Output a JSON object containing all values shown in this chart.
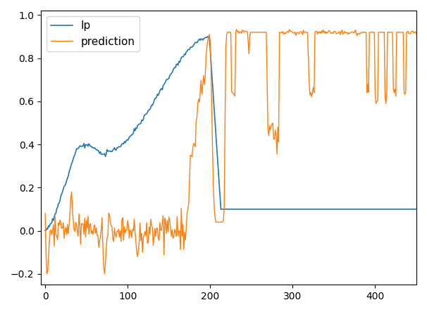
{
  "title": "",
  "xlabel": "",
  "ylabel": "",
  "xlim": [
    -5,
    450
  ],
  "ylim": [
    -0.25,
    1.02
  ],
  "legend_labels": [
    "Ip",
    "prediction"
  ],
  "lp_color": "#1f77b4",
  "pred_color": "#ff7f0e",
  "background_color": "#ffffff",
  "figsize": [
    6.06,
    4.43
  ],
  "dpi": 100
}
